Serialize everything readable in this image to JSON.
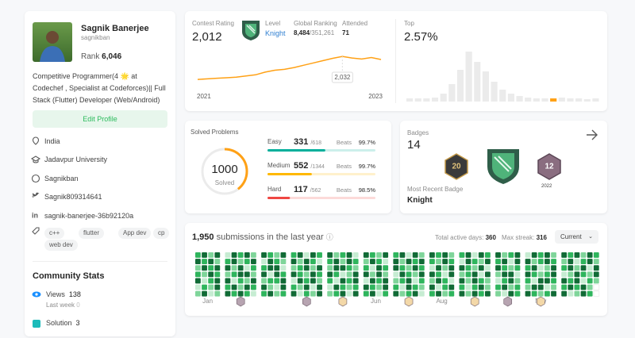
{
  "profile": {
    "name": "Sagnik Banerjee",
    "username": "sagnikban",
    "rank_label": "Rank",
    "rank": "6,046",
    "bio": "Competitive Programmer(4 🌟 at Codechef , Specialist at Codeforces)|| Full Stack (Flutter) Developer (Web/Android)",
    "edit_button": "Edit Profile",
    "location": "India",
    "school": "Jadavpur University",
    "github": "Sagnikban",
    "twitter": "Sagnik809314641",
    "linkedin": "sagnik-banerjee-36b92120a",
    "skills": [
      "c++",
      "flutter",
      "App dev",
      "cp",
      "web dev"
    ]
  },
  "community": {
    "title": "Community Stats",
    "views_label": "Views",
    "views": 138,
    "last_week_label": "Last week",
    "last_week": 0,
    "solution_label": "Solution",
    "solution": 3
  },
  "contest": {
    "rating_label": "Contest Rating",
    "rating": "2,012",
    "level_label": "Level",
    "level": "Knight",
    "global_label": "Global Ranking",
    "global_rank": "8,484",
    "global_total": "/351,261",
    "attended_label": "Attended",
    "attended": 71,
    "ratings": [
      1882,
      1886,
      1890,
      1893,
      1897,
      1905,
      1912,
      1930,
      1942,
      1948,
      1960,
      1975,
      1990,
      2005,
      2020,
      2032,
      2022,
      2015,
      2025,
      2012
    ],
    "ylim": [
      1800,
      2100
    ],
    "start_label": "2021",
    "end_label": "2023",
    "tooltip": "2,032",
    "top_label": "Top",
    "top": "2.57%",
    "distribution": [
      4,
      4,
      4,
      5,
      10,
      22,
      40,
      63,
      50,
      38,
      25,
      15,
      10,
      7,
      5,
      4,
      4,
      4,
      5,
      4,
      4,
      3,
      4
    ],
    "distribution_ylim": [
      0,
      70
    ],
    "user_bucket": 17
  },
  "solved": {
    "title": "Solved Problems",
    "total_solved": 1000,
    "solved_label": "Solved",
    "levels": [
      {
        "name": "Easy",
        "color": "#00af9b",
        "solved": 331,
        "total": 618,
        "total_label": "/618",
        "beats_label": "Beats",
        "beats": "99.7%"
      },
      {
        "name": "Medium",
        "color": "#ffb800",
        "solved": 552,
        "total": 1344,
        "total_label": "/1344",
        "beats_label": "Beats",
        "beats": "99.7%"
      },
      {
        "name": "Hard",
        "color": "#ef4743",
        "solved": 117,
        "total": 562,
        "total_label": "/562",
        "beats_label": "Beats",
        "beats": "98.5%"
      }
    ]
  },
  "badges": {
    "title": "Badges",
    "count": 14,
    "badge_year": "2022",
    "recent_label": "Most Recent Badge",
    "recent": "Knight"
  },
  "submissions": {
    "count": "1,950",
    "label": "submissions in the last year",
    "active_label": "Total active days:",
    "active": 360,
    "streak_label": "Max streak:",
    "streak": 316,
    "period": "Current",
    "months": [
      {
        "label": "Jan",
        "weeks": [
          [
            3,
            4,
            2,
            3,
            4,
            1,
            2
          ],
          [
            4,
            3,
            4,
            2,
            1,
            3,
            4
          ],
          [
            2,
            4,
            3,
            4,
            3,
            2,
            1
          ],
          [
            4,
            2,
            4,
            3,
            4,
            4,
            2
          ]
        ]
      },
      {
        "label": null,
        "weeks": [
          [
            1,
            3,
            4,
            2,
            4,
            3,
            4
          ],
          [
            4,
            4,
            2,
            3,
            1,
            4,
            3
          ],
          [
            3,
            2,
            4,
            4,
            3,
            2,
            4
          ],
          [
            4,
            3,
            1,
            4,
            2,
            4,
            3
          ],
          [
            2,
            4,
            3,
            2,
            4,
            3,
            1
          ]
        ]
      },
      {
        "label": null,
        "weeks": [
          [
            4,
            1,
            3,
            4,
            2,
            4,
            3
          ],
          [
            3,
            4,
            4,
            1,
            3,
            2,
            4
          ],
          [
            2,
            3,
            4,
            4,
            3,
            1,
            2
          ],
          [
            4,
            2,
            1,
            3,
            4,
            4,
            3
          ]
        ]
      },
      {
        "label": null,
        "weeks": [
          [
            3,
            4,
            2,
            4,
            1,
            3,
            4
          ],
          [
            4,
            2,
            3,
            3,
            4,
            2,
            1
          ],
          [
            1,
            4,
            4,
            2,
            3,
            4,
            3
          ],
          [
            4,
            3,
            2,
            4,
            4,
            1,
            2
          ],
          [
            3,
            1,
            4,
            3,
            2,
            4,
            4
          ]
        ]
      },
      {
        "label": null,
        "weeks": [
          [
            4,
            3,
            2,
            4,
            3,
            1,
            2
          ],
          [
            2,
            4,
            4,
            3,
            1,
            4,
            3
          ],
          [
            3,
            2,
            4,
            1,
            4,
            3,
            4
          ],
          [
            4,
            4,
            3,
            2,
            3,
            2,
            1
          ],
          [
            1,
            3,
            2,
            4,
            4,
            3,
            4
          ]
        ]
      },
      {
        "label": "Jun",
        "weeks": [
          [
            4,
            2,
            3,
            4,
            1,
            4,
            3
          ],
          [
            3,
            4,
            1,
            2,
            4,
            3,
            4
          ],
          [
            2,
            3,
            4,
            4,
            3,
            2,
            1
          ],
          [
            4,
            1,
            3,
            2,
            4,
            4,
            3
          ]
        ]
      },
      {
        "label": null,
        "weeks": [
          [
            3,
            4,
            4,
            1,
            2,
            3,
            4
          ],
          [
            4,
            2,
            3,
            4,
            3,
            1,
            2
          ],
          [
            1,
            4,
            2,
            3,
            4,
            4,
            3
          ],
          [
            4,
            3,
            4,
            2,
            1,
            3,
            4
          ],
          [
            2,
            4,
            3,
            4,
            3,
            2,
            1
          ]
        ]
      },
      {
        "label": "Aug",
        "weeks": [
          [
            4,
            3,
            1,
            4,
            2,
            4,
            3
          ],
          [
            3,
            2,
            4,
            3,
            4,
            1,
            4
          ],
          [
            4,
            4,
            2,
            1,
            3,
            3,
            2
          ],
          [
            2,
            3,
            4,
            4,
            1,
            4,
            3
          ]
        ]
      },
      {
        "label": null,
        "weeks": [
          [
            3,
            1,
            4,
            2,
            4,
            3,
            4
          ],
          [
            4,
            4,
            3,
            3,
            2,
            1,
            2
          ],
          [
            1,
            3,
            2,
            4,
            4,
            3,
            4
          ],
          [
            4,
            2,
            4,
            1,
            3,
            4,
            3
          ],
          [
            3,
            4,
            1,
            4,
            2,
            2,
            4
          ]
        ]
      },
      {
        "label": null,
        "weeks": [
          [
            4,
            3,
            4,
            2,
            1,
            3,
            2
          ],
          [
            2,
            4,
            3,
            4,
            3,
            4,
            1
          ],
          [
            3,
            1,
            2,
            4,
            4,
            2,
            4
          ],
          [
            4,
            4,
            3,
            1,
            2,
            3,
            3
          ]
        ]
      },
      {
        "label": "Nov",
        "weeks": [
          [
            1,
            4,
            3,
            4,
            3,
            2,
            4
          ],
          [
            4,
            2,
            4,
            3,
            1,
            4,
            3
          ],
          [
            3,
            3,
            1,
            2,
            4,
            4,
            2
          ],
          [
            4,
            4,
            2,
            3,
            4,
            1,
            3
          ],
          [
            2,
            3,
            4,
            4,
            3,
            2,
            4
          ]
        ]
      },
      {
        "label": null,
        "weeks": [
          [
            4,
            2,
            3,
            1,
            4,
            3,
            4
          ],
          [
            3,
            4,
            4,
            2,
            3,
            4,
            1
          ],
          [
            4,
            1,
            2,
            4,
            4,
            3,
            2
          ],
          [
            2,
            3,
            4,
            3,
            1,
            4,
            4
          ],
          [
            4,
            4,
            1,
            2,
            3,
            2,
            3
          ],
          [
            3,
            2,
            4,
            4,
            2,
            0,
            0
          ]
        ]
      }
    ]
  }
}
